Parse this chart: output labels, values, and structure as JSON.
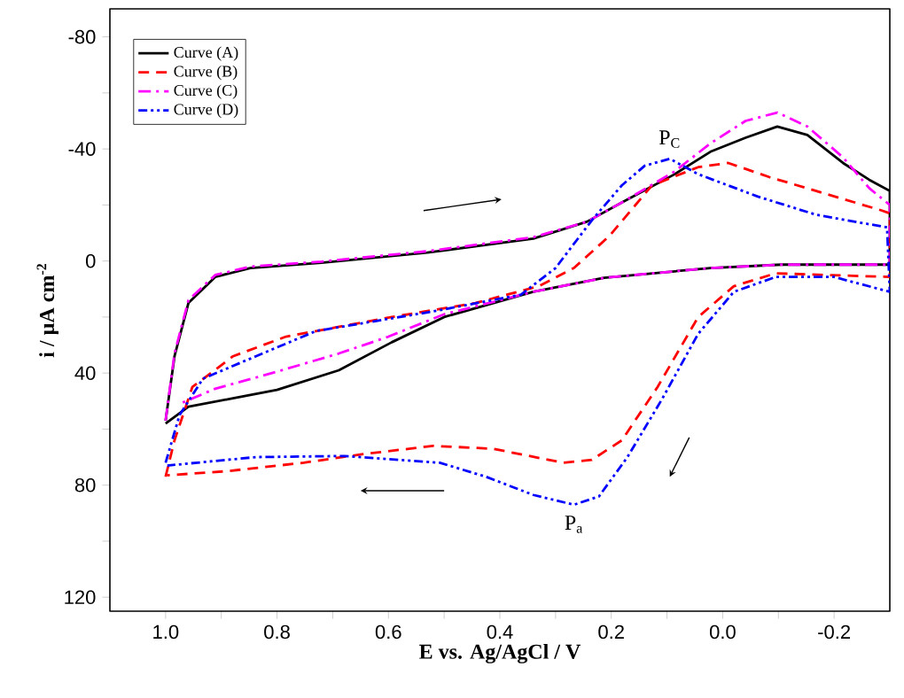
{
  "chart_data": {
    "type": "line",
    "xlabel": "E vs. Ag/AgCl / V",
    "ylabel": "i / µA cm$^{-2}$",
    "xlim": [
      1.1,
      -0.3
    ],
    "ylim": [
      125,
      -90
    ],
    "xticks": [
      {
        "value": 1,
        "label": "1.0"
      },
      {
        "value": 0.9,
        "label": null
      },
      {
        "value": 0.8,
        "label": "0.8"
      },
      {
        "value": 0.7,
        "label": null
      },
      {
        "value": 0.6,
        "label": "0.6"
      },
      {
        "value": 0.5,
        "label": null
      },
      {
        "value": 0.4,
        "label": "0.4"
      },
      {
        "value": 0.3,
        "label": null
      },
      {
        "value": 0.2,
        "label": "0.2"
      },
      {
        "value": 0.1,
        "label": null
      },
      {
        "value": 0,
        "label": "0.0"
      },
      {
        "value": -0.1,
        "label": null
      },
      {
        "value": -0.2,
        "label": "-0.2"
      }
    ],
    "yticks": [
      -80,
      {
        "value": -60,
        "label": null
      },
      -40,
      {
        "value": -20,
        "label": null
      },
      0,
      {
        "value": 20,
        "label": null
      },
      40,
      {
        "value": 60,
        "label": null
      },
      80,
      {
        "value": 100,
        "label": null
      },
      120
    ],
    "legend": "top left",
    "annotations": [
      {
        "text": "P$_{C}$",
        "x": 0.095,
        "y": -36.5
      },
      {
        "text": "P$_{a}$",
        "x": 0.267,
        "y": 87
      }
    ],
    "series": [
      {
        "name": "Curve (A)",
        "color": "#000000",
        "line_style": "solid",
        "x": [
          1.0,
          0.984,
          0.959,
          0.911,
          0.848,
          0.72,
          0.53,
          0.34,
          0.244,
          0.18,
          0.086,
          0.022,
          -0.041,
          -0.098,
          -0.152,
          -0.216,
          -0.263,
          -0.3,
          -0.3,
          -0.105,
          0.022,
          0.213,
          0.34,
          0.5,
          0.594,
          0.689,
          0.8,
          0.879,
          0.959,
          1.0
        ],
        "values": [
          57,
          34,
          15,
          5.7,
          2.5,
          0.6,
          -3,
          -8,
          -14,
          -21,
          -31,
          -39,
          -44,
          -48,
          -45,
          -35,
          -29,
          -25,
          1.3,
          1.3,
          2.5,
          6,
          11,
          20,
          29,
          39,
          46,
          49,
          52,
          58
        ]
      },
      {
        "name": "Curve (B)",
        "color": "#ff0000",
        "line_style": "dashed",
        "x": [
          1.0,
          0.984,
          0.952,
          0.879,
          0.784,
          0.594,
          0.444,
          0.33,
          0.267,
          0.203,
          0.127,
          0.044,
          -0.01,
          -0.083,
          -0.168,
          -0.286,
          -0.3,
          -0.3,
          -0.095,
          -0.02,
          0.044,
          0.117,
          0.181,
          0.235,
          0.286,
          0.413,
          0.52,
          0.648,
          0.752,
          0.889,
          0.997
        ],
        "values": [
          77,
          64,
          45,
          34,
          27,
          20,
          15,
          9,
          2.5,
          -9,
          -27,
          -33.5,
          -35,
          -30,
          -25,
          -18,
          -17,
          5.7,
          4.4,
          9,
          20,
          45,
          64,
          71,
          72,
          67,
          66,
          69,
          72,
          75,
          76.5
        ]
      },
      {
        "name": "Curve (C)",
        "color": "#ff00ff",
        "line_style": "dashdot",
        "x": [
          1.0,
          0.984,
          0.959,
          0.911,
          0.848,
          0.72,
          0.53,
          0.34,
          0.244,
          0.18,
          0.086,
          0.022,
          -0.041,
          -0.098,
          -0.152,
          -0.216,
          -0.263,
          -0.3,
          -0.3,
          -0.105,
          0.022,
          0.213,
          0.34,
          0.5,
          0.6,
          0.689,
          0.8,
          0.911,
          0.975
        ],
        "values": [
          57,
          33,
          14,
          5,
          2,
          0.2,
          -3.5,
          -8.5,
          -14,
          -21,
          -32,
          -42,
          -50,
          -53,
          -48,
          -37,
          -26,
          -20,
          1.3,
          1.3,
          2.5,
          6,
          11,
          19,
          27,
          33,
          39.5,
          45.6,
          51
        ]
      },
      {
        "name": "Curve (D)",
        "color": "#0000ff",
        "line_style": "dashdotdot",
        "x": [
          1.0,
          0.975,
          0.933,
          0.838,
          0.73,
          0.52,
          0.362,
          0.3,
          0.235,
          0.181,
          0.14,
          0.095,
          0.044,
          -0.063,
          -0.168,
          -0.295,
          -0.3,
          -0.2,
          -0.095,
          -0.02,
          0.044,
          0.108,
          0.171,
          0.222,
          0.267,
          0.34,
          0.425,
          0.508,
          0.679,
          0.838,
          0.997
        ],
        "values": [
          72,
          55,
          42,
          34,
          25,
          18,
          12,
          2.5,
          -14.5,
          -27,
          -34,
          -36.5,
          -31,
          -23,
          -16.5,
          -12,
          11,
          5.7,
          5.7,
          11,
          26,
          49,
          70,
          84,
          87,
          83.5,
          77,
          72,
          69.6,
          70,
          73
        ]
      }
    ]
  }
}
